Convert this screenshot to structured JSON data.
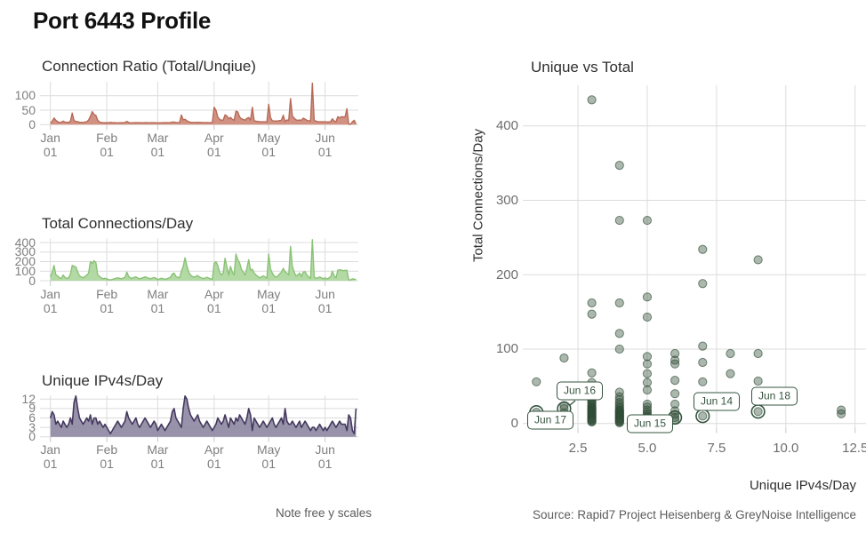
{
  "title": "Port 6443 Profile",
  "captions": {
    "left_note": "Note free y scales",
    "source": "Source: Rapid7 Project Heisenberg & GreyNoise Intelligence"
  },
  "colors": {
    "ratio_fill": "#cd8675",
    "ratio_line": "#b66a57",
    "total_fill": "#abd59b",
    "total_line": "#8ac276",
    "unique_fill": "#8e86a2",
    "unique_line": "#453a5e",
    "scatter_point_fill": "rgba(58,84,63,0.42)",
    "scatter_point_stroke": "rgba(45,75,52,0.65)",
    "highlight_green": "#35543f",
    "gridline": "#dcdcdc",
    "axis_tick": "#c8c8c8"
  },
  "x_axis": {
    "months": [
      "Jan",
      "Feb",
      "Mar",
      "Apr",
      "May",
      "Jun"
    ],
    "day_line": "01",
    "month_day_offsets": [
      0,
      31,
      59,
      90,
      120,
      151
    ],
    "n_days": 169,
    "start": "Jan 01",
    "end": "Jun 18"
  },
  "chart_data": [
    {
      "type": "area",
      "title": "Connection Ratio (Total/Unqiue)",
      "ylabel": "",
      "y_ticks": [
        0,
        50,
        100
      ],
      "ylim": [
        0,
        145
      ],
      "values_formula": "total_connections_per_day / unique_ipv4s_per_day (daily, Jan 01 - Jun 18)"
    },
    {
      "type": "area",
      "title": "Total Connections/Day",
      "ylabel": "",
      "y_ticks": [
        0,
        100,
        200,
        300,
        400
      ],
      "ylim": [
        0,
        440
      ],
      "values": [
        40,
        90,
        160,
        60,
        50,
        30,
        25,
        60,
        35,
        25,
        30,
        70,
        160,
        150,
        145,
        90,
        50,
        40,
        30,
        45,
        60,
        80,
        200,
        180,
        210,
        190,
        60,
        45,
        30,
        20,
        25,
        20,
        12,
        8,
        14,
        20,
        25,
        30,
        26,
        20,
        28,
        35,
        90,
        45,
        30,
        25,
        35,
        40,
        28,
        20,
        26,
        32,
        40,
        34,
        26,
        20,
        28,
        34,
        26,
        12,
        18,
        26,
        20,
        14,
        20,
        28,
        36,
        70,
        80,
        45,
        35,
        30,
        100,
        150,
        240,
        160,
        90,
        60,
        45,
        38,
        45,
        55,
        38,
        30,
        22,
        28,
        36,
        28,
        20,
        14,
        180,
        200,
        160,
        90,
        60,
        80,
        235,
        150,
        60,
        150,
        90,
        60,
        280,
        220,
        188,
        120,
        90,
        60,
        130,
        220,
        110,
        120,
        80,
        60,
        45,
        30,
        40,
        50,
        40,
        28,
        280,
        120,
        80,
        50,
        38,
        50,
        70,
        90,
        130,
        94,
        80,
        60,
        360,
        150,
        90,
        50,
        60,
        80,
        45,
        90,
        95,
        60,
        40,
        25,
        430,
        40,
        25,
        30,
        40,
        30,
        20,
        30,
        18,
        28,
        40,
        100,
        50,
        30,
        110,
        115,
        110,
        105,
        108,
        110,
        10,
        8,
        20,
        15,
        16
      ]
    },
    {
      "type": "area",
      "title": "Unique IPv4s/Day",
      "ylabel": "",
      "y_ticks": [
        0,
        3,
        6,
        9,
        12
      ],
      "ylim": [
        0,
        13
      ],
      "values": [
        6,
        8,
        7,
        4,
        5,
        4,
        3,
        5,
        4,
        3,
        4,
        6,
        4,
        11,
        13,
        9,
        6,
        5,
        4,
        5,
        6,
        5,
        7,
        4,
        6,
        6,
        4,
        5,
        4,
        3,
        4,
        3,
        2,
        1,
        2,
        3,
        4,
        5,
        4,
        3,
        4,
        5,
        8,
        6,
        5,
        4,
        5,
        6,
        4,
        3,
        4,
        5,
        6,
        5,
        4,
        3,
        4,
        5,
        4,
        2,
        3,
        4,
        3,
        2,
        3,
        4,
        5,
        8,
        9,
        6,
        5,
        4,
        3,
        9,
        13,
        12,
        9,
        7,
        6,
        5,
        6,
        7,
        5,
        4,
        3,
        4,
        5,
        4,
        3,
        2,
        3,
        4,
        6,
        5,
        4,
        5,
        7,
        5,
        3,
        6,
        5,
        4,
        6,
        5,
        7,
        6,
        5,
        4,
        6,
        9,
        7,
        2,
        6,
        5,
        4,
        3,
        4,
        5,
        4,
        3,
        4,
        5,
        6,
        4,
        3,
        4,
        5,
        6,
        4,
        9,
        5,
        4,
        4,
        5,
        4,
        3,
        4,
        5,
        3,
        4,
        5,
        4,
        3,
        2,
        3,
        3,
        2,
        3,
        4,
        3,
        2,
        3,
        2,
        3,
        4,
        5,
        4,
        3,
        4,
        5,
        4,
        4,
        4,
        2,
        7,
        6,
        2,
        1,
        9
      ]
    },
    {
      "type": "scatter",
      "title": "Unique vs Total",
      "xlabel": "Unique IPv4s/Day",
      "ylabel": "Total Connections/Day",
      "x_ticks": [
        2.5,
        5.0,
        7.5,
        10.0,
        12.5
      ],
      "y_ticks": [
        0,
        100,
        200,
        300,
        400
      ],
      "xlim": [
        0.5,
        12.9
      ],
      "ylim": [
        -5,
        455
      ],
      "points": [
        [
          1,
          56
        ],
        [
          2,
          88
        ],
        [
          2,
          24
        ],
        [
          2,
          14
        ],
        [
          3,
          435
        ],
        [
          3,
          162
        ],
        [
          3,
          147
        ],
        [
          3,
          68
        ],
        [
          3,
          55
        ],
        [
          3,
          48
        ],
        [
          3,
          42
        ],
        [
          3,
          38
        ],
        [
          3,
          35
        ],
        [
          3,
          32
        ],
        [
          3,
          30
        ],
        [
          3,
          28
        ],
        [
          3,
          26
        ],
        [
          3,
          24
        ],
        [
          3,
          22
        ],
        [
          3,
          21
        ],
        [
          3,
          20
        ],
        [
          3,
          19
        ],
        [
          3,
          18
        ],
        [
          3,
          17
        ],
        [
          3,
          16
        ],
        [
          3,
          15
        ],
        [
          3,
          14
        ],
        [
          3,
          13
        ],
        [
          3,
          12
        ],
        [
          3,
          11
        ],
        [
          3,
          10
        ],
        [
          3,
          9
        ],
        [
          3,
          8
        ],
        [
          3,
          7
        ],
        [
          3,
          6
        ],
        [
          3,
          5
        ],
        [
          3,
          4
        ],
        [
          3,
          3
        ],
        [
          3,
          2
        ],
        [
          4,
          347
        ],
        [
          4,
          273
        ],
        [
          4,
          162
        ],
        [
          4,
          121
        ],
        [
          4,
          100
        ],
        [
          4,
          42
        ],
        [
          4,
          36
        ],
        [
          4,
          32
        ],
        [
          4,
          28
        ],
        [
          4,
          25
        ],
        [
          4,
          22
        ],
        [
          4,
          20
        ],
        [
          4,
          18
        ],
        [
          4,
          17
        ],
        [
          4,
          16
        ],
        [
          4,
          15
        ],
        [
          4,
          14
        ],
        [
          4,
          13
        ],
        [
          4,
          12
        ],
        [
          4,
          11
        ],
        [
          4,
          10
        ],
        [
          4,
          9
        ],
        [
          4,
          8
        ],
        [
          4,
          7
        ],
        [
          4,
          6
        ],
        [
          4,
          5
        ],
        [
          4,
          4
        ],
        [
          4,
          3
        ],
        [
          4,
          2
        ],
        [
          4,
          1
        ],
        [
          5,
          273
        ],
        [
          5,
          170
        ],
        [
          5,
          143
        ],
        [
          5,
          90
        ],
        [
          5,
          80
        ],
        [
          5,
          67
        ],
        [
          5,
          55
        ],
        [
          5,
          45
        ],
        [
          5,
          26
        ],
        [
          5,
          22
        ],
        [
          5,
          18
        ],
        [
          5,
          15
        ],
        [
          5,
          12
        ],
        [
          5,
          10
        ],
        [
          5,
          8
        ],
        [
          5,
          6
        ],
        [
          5,
          4
        ],
        [
          5,
          2
        ],
        [
          6,
          94
        ],
        [
          6,
          85
        ],
        [
          6,
          80
        ],
        [
          6,
          58
        ],
        [
          6,
          40
        ],
        [
          6,
          26
        ],
        [
          6,
          17
        ],
        [
          6,
          12
        ],
        [
          6,
          5
        ],
        [
          7,
          234
        ],
        [
          7,
          188
        ],
        [
          7,
          104
        ],
        [
          7,
          82
        ],
        [
          7,
          56
        ],
        [
          8,
          94
        ],
        [
          8,
          67
        ],
        [
          9,
          220
        ],
        [
          9,
          94
        ],
        [
          9,
          57
        ],
        [
          12,
          18
        ],
        [
          12,
          13
        ]
      ],
      "labeled_points": [
        {
          "label": "Jun 17",
          "x": 1,
          "y": 15
        },
        {
          "label": "Jun 16",
          "x": 2,
          "y": 20
        },
        {
          "label": "Jun 15",
          "x": 6,
          "y": 8
        },
        {
          "label": "Jun 14",
          "x": 7,
          "y": 10
        },
        {
          "label": "Jun 18",
          "x": 9,
          "y": 16
        }
      ]
    }
  ]
}
